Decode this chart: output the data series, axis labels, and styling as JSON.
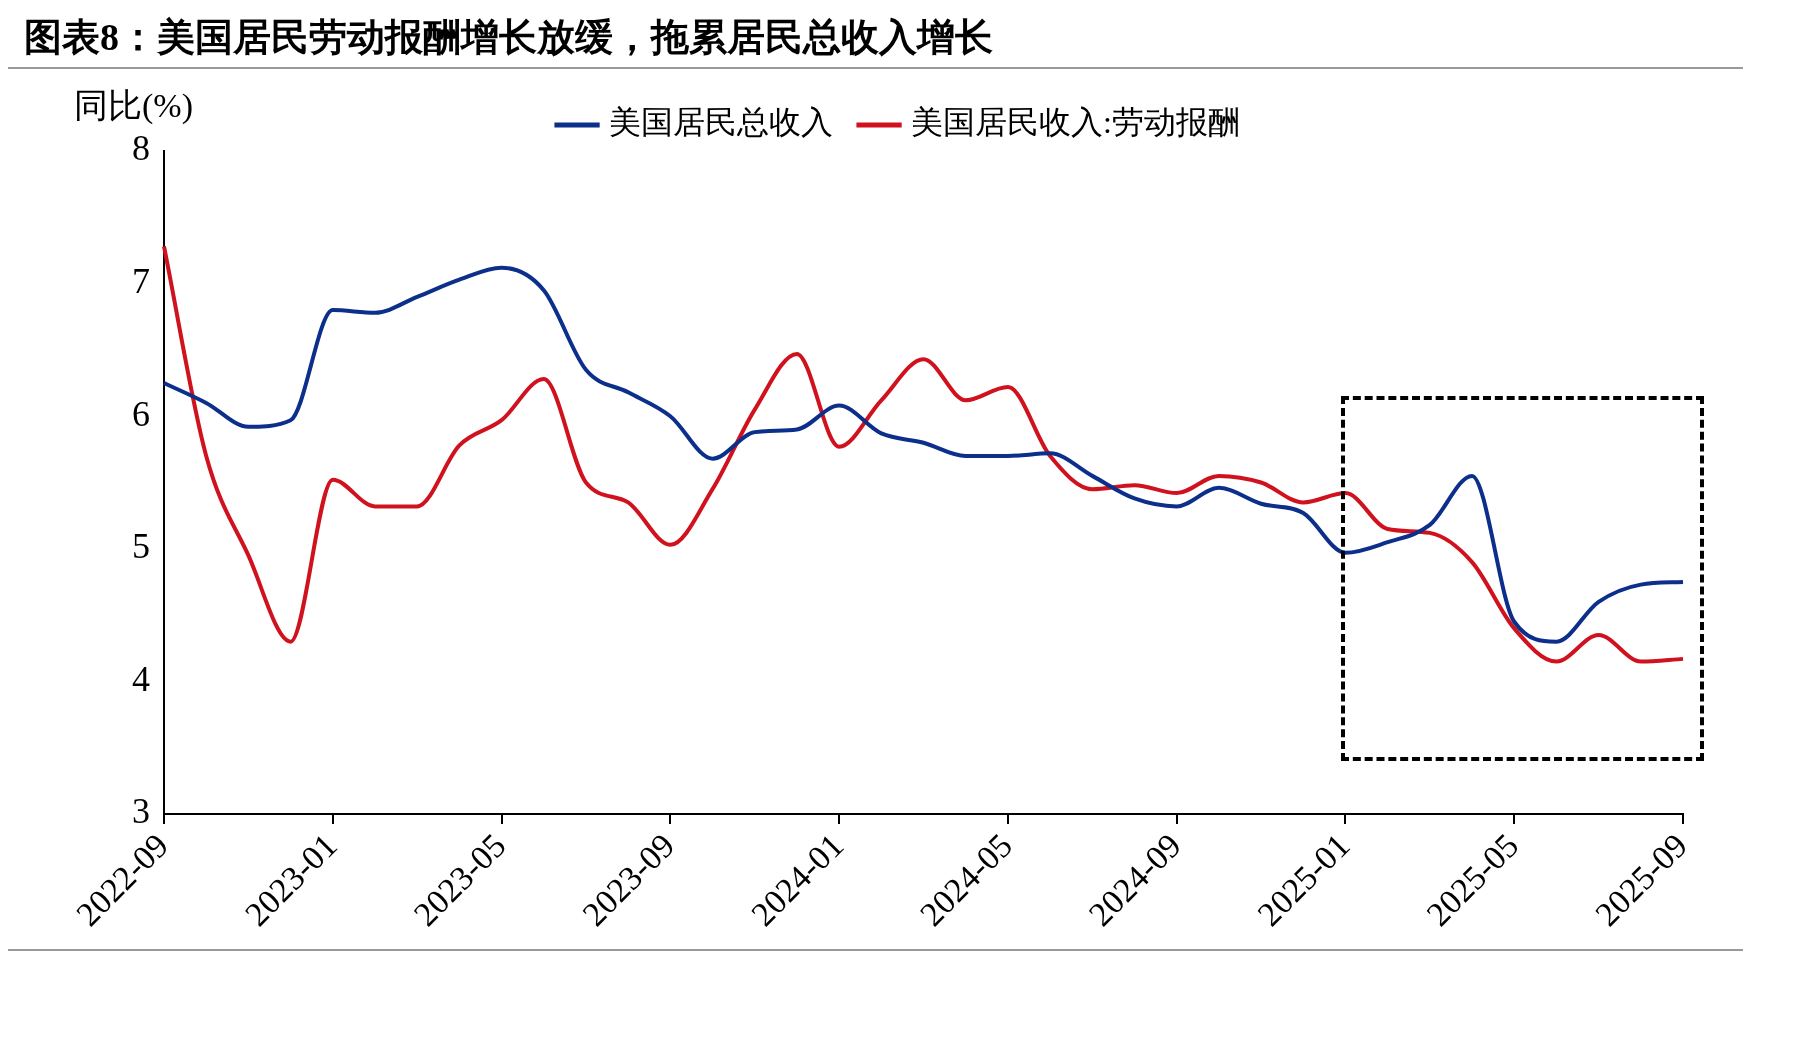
{
  "chart_data": {
    "type": "line",
    "title": "图表8：美国居民劳动报酬增长放缓，拖累居民总收入增长",
    "ylabel": "同比(%)",
    "categories": [
      "2022-09",
      null,
      null,
      null,
      "2023-01",
      null,
      null,
      null,
      "2023-05",
      null,
      null,
      null,
      "2023-09",
      null,
      null,
      null,
      "2024-01",
      null,
      null,
      null,
      "2024-05",
      null,
      null,
      null,
      "2024-09",
      null,
      null,
      null,
      "2025-01",
      null,
      null,
      null,
      "2025-05",
      null,
      null,
      null,
      "2025-09"
    ],
    "series": [
      {
        "name": "美国居民总收入",
        "color": "#0b2f8a",
        "values": [
          6.25,
          6.1,
          5.92,
          5.97,
          6.8,
          6.78,
          6.9,
          7.03,
          7.12,
          6.95,
          6.35,
          6.18,
          6.0,
          5.68,
          5.88,
          5.9,
          6.08,
          5.87,
          5.8,
          5.7,
          5.7,
          5.72,
          5.55,
          5.38,
          5.32,
          5.46,
          5.34,
          5.27,
          4.97,
          5.05,
          5.18,
          5.55,
          4.45,
          4.3,
          4.6,
          4.73,
          4.75
        ]
      },
      {
        "name": "美国居民收入:劳动报酬",
        "color": "#d0121f",
        "values": [
          7.28,
          5.7,
          4.95,
          4.3,
          5.52,
          5.32,
          5.32,
          5.78,
          5.97,
          6.28,
          5.5,
          5.35,
          5.03,
          5.45,
          6.05,
          6.47,
          5.77,
          6.12,
          6.43,
          6.12,
          6.22,
          5.7,
          5.45,
          5.48,
          5.42,
          5.55,
          5.5,
          5.35,
          5.42,
          5.15,
          5.12,
          4.9,
          4.4,
          4.15,
          4.35,
          4.15,
          4.17
        ]
      }
    ],
    "ylim": [
      3,
      8
    ],
    "yticks": [
      3,
      4,
      5,
      6,
      7,
      8
    ],
    "grid": false,
    "legend": "top",
    "marker": "none",
    "line_style": "solid"
  }
}
